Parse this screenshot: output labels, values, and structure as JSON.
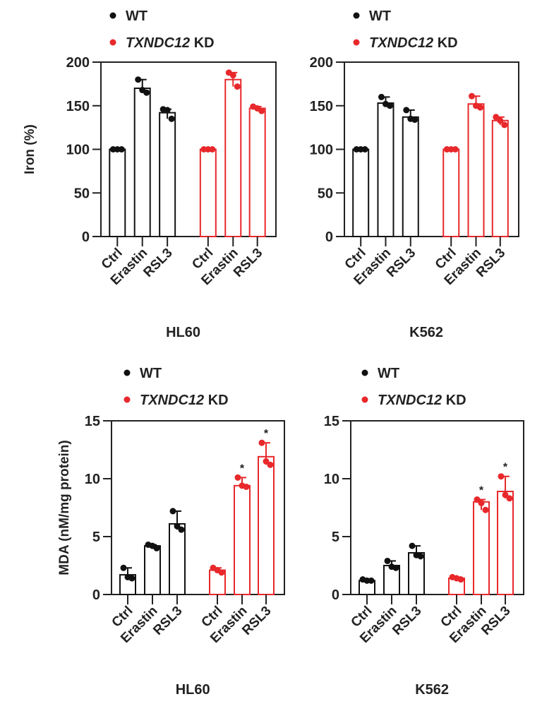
{
  "legend": {
    "wt": "WT",
    "kd_gene": "TXNDC12",
    "kd_suffix": " KD",
    "colors": {
      "wt": "#111111",
      "kd": "#e8282b"
    }
  },
  "chart_data": [
    {
      "type": "bar",
      "ylabel": "Iron (%)",
      "xgroup": "HL60",
      "ylim": [
        0,
        200
      ],
      "yticks": [
        0,
        50,
        100,
        150,
        200
      ],
      "categories": [
        "Ctrl",
        "Erastin",
        "RSL3"
      ],
      "series": [
        {
          "name": "WT",
          "values": [
            100,
            170,
            142
          ],
          "points": [
            [
              100,
              100,
              100
            ],
            [
              180,
              168,
              165
            ],
            [
              146,
              145,
              135
            ]
          ],
          "significant": [
            false,
            false,
            false
          ]
        },
        {
          "name": "TXNDC12 KD",
          "values": [
            100,
            180,
            147
          ],
          "points": [
            [
              100,
              100,
              100
            ],
            [
              188,
              185,
              172
            ],
            [
              149,
              147,
              144
            ]
          ],
          "significant": [
            false,
            false,
            false
          ]
        }
      ]
    },
    {
      "type": "bar",
      "ylabel": "",
      "xgroup": "K562",
      "ylim": [
        0,
        200
      ],
      "yticks": [
        0,
        50,
        100,
        150,
        200
      ],
      "categories": [
        "Ctrl",
        "Erastin",
        "RSL3"
      ],
      "series": [
        {
          "name": "WT",
          "values": [
            100,
            153,
            137
          ],
          "points": [
            [
              100,
              100,
              100
            ],
            [
              160,
              152,
              150
            ],
            [
              145,
              135,
              134
            ]
          ],
          "significant": [
            false,
            false,
            false
          ]
        },
        {
          "name": "TXNDC12 KD",
          "values": [
            100,
            152,
            133
          ],
          "points": [
            [
              100,
              100,
              100
            ],
            [
              161,
              150,
              148
            ],
            [
              137,
              133,
              128
            ]
          ],
          "significant": [
            false,
            false,
            false
          ]
        }
      ]
    },
    {
      "type": "bar",
      "ylabel": "MDA (nM/mg protein)",
      "xgroup": "HL60",
      "ylim": [
        0,
        15
      ],
      "yticks": [
        0,
        5,
        10,
        15
      ],
      "categories": [
        "Ctrl",
        "Erastin",
        "RSL3"
      ],
      "series": [
        {
          "name": "WT",
          "values": [
            1.7,
            4.2,
            6.1
          ],
          "points": [
            [
              2.3,
              1.5,
              1.4
            ],
            [
              4.3,
              4.2,
              4.0
            ],
            [
              7.2,
              5.9,
              5.6
            ]
          ],
          "significant": [
            false,
            false,
            false
          ]
        },
        {
          "name": "TXNDC12 KD",
          "values": [
            2.1,
            9.4,
            11.9
          ],
          "points": [
            [
              2.3,
              2.1,
              1.9
            ],
            [
              10.1,
              9.4,
              9.3
            ],
            [
              13.1,
              11.5,
              11.2
            ]
          ],
          "significant": [
            false,
            true,
            true
          ]
        }
      ],
      "annotation": "*"
    },
    {
      "type": "bar",
      "ylabel": "",
      "xgroup": "K562",
      "ylim": [
        0,
        15
      ],
      "yticks": [
        0,
        5,
        10,
        15
      ],
      "categories": [
        "Ctrl",
        "Erastin",
        "RSL3"
      ],
      "series": [
        {
          "name": "WT",
          "values": [
            1.2,
            2.5,
            3.6
          ],
          "points": [
            [
              1.3,
              1.2,
              1.2
            ],
            [
              2.9,
              2.4,
              2.3
            ],
            [
              4.2,
              3.4,
              3.3
            ]
          ],
          "significant": [
            false,
            false,
            false
          ]
        },
        {
          "name": "TXNDC12 KD",
          "values": [
            1.4,
            8.0,
            8.9
          ],
          "points": [
            [
              1.5,
              1.4,
              1.3
            ],
            [
              8.2,
              7.9,
              7.3
            ],
            [
              10.2,
              8.6,
              8.3
            ]
          ],
          "significant": [
            false,
            true,
            true
          ]
        }
      ],
      "annotation": "*"
    }
  ]
}
